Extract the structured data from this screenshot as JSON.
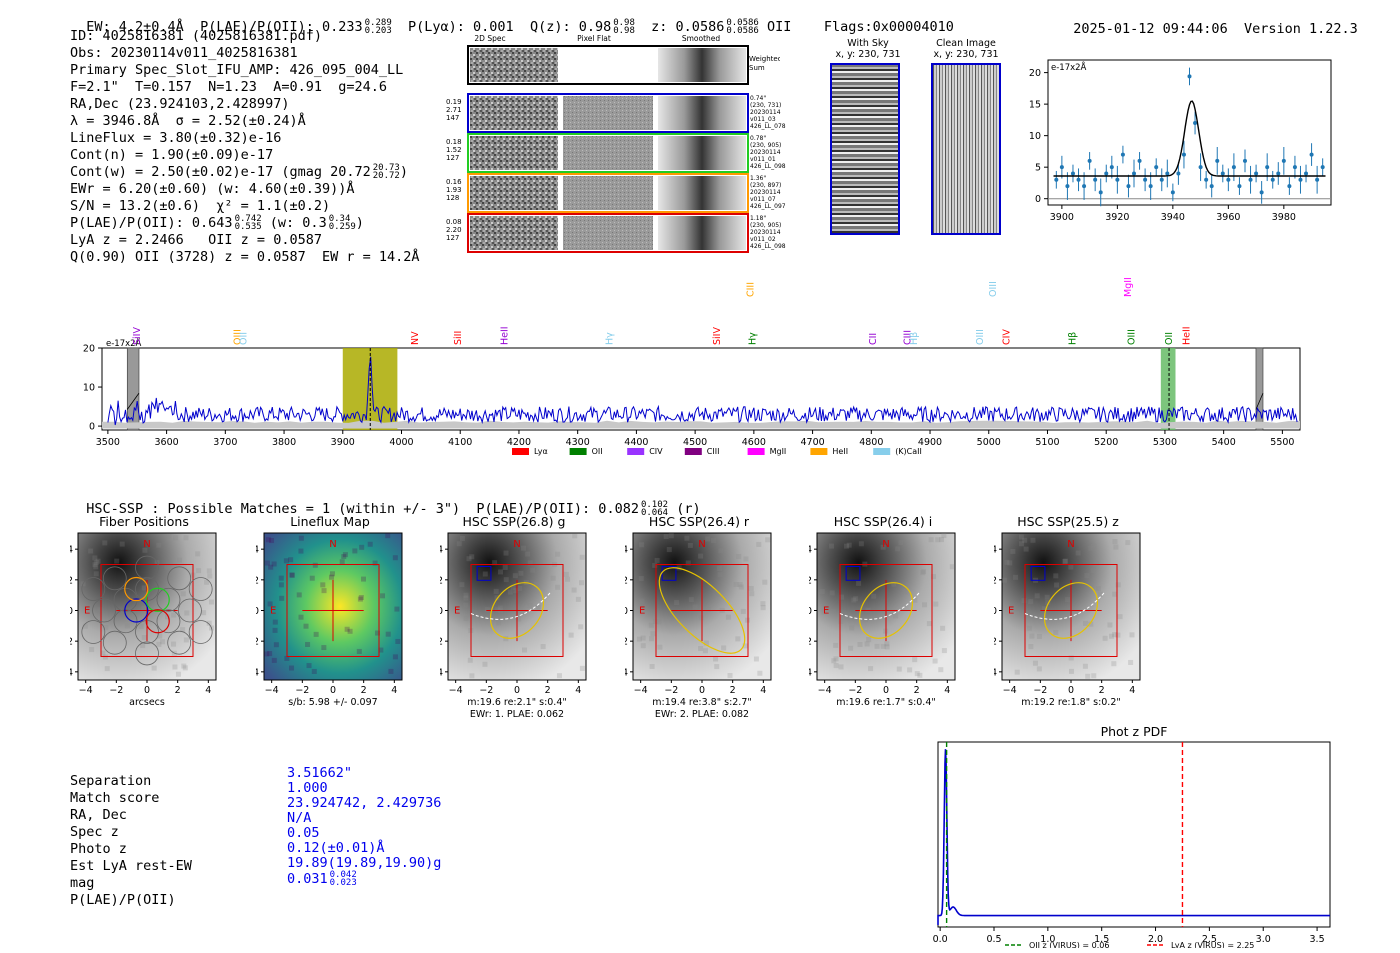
{
  "header": {
    "ew": "EW: 4.2±0.4Å",
    "plae": "P(LAE)/P(OII): 0.233",
    "plae_hi": "0.289",
    "plae_lo": "0.203",
    "plya": "P(Lyα): 0.001",
    "qz": "Q(z): 0.98",
    "qz_hi": "0.98",
    "qz_lo": "0.98",
    "z": "z: 0.0586",
    "z_hi": "0.0586",
    "z_lo": "0.0586",
    "z_line": "OII",
    "flags": "Flags:0x00004010",
    "timestamp": "2025-01-12 09:44:06",
    "version": "Version 1.22.3"
  },
  "info": {
    "id": "ID: 4025816381 (4025816381.pdf)",
    "obs": "Obs: 20230114v011_4025816381",
    "primary": "Primary Spec_Slot_IFU_AMP: 426_095_004_LL",
    "params": "F=2.1\"  T=0.157  N=1.23  A=0.91  g=24.6",
    "radec": "RA,Dec (23.924103,2.428997)",
    "lambda": "λ = 3946.8Å  σ = 2.52(±0.24)Å",
    "lineflux": "LineFlux = 3.80(±0.32)e-16",
    "contn": "Cont(n) = 1.90(±0.09)e-17",
    "contw": "Cont(w) = 2.50(±0.02)e-17 (gmag 20.72",
    "contw_hi": "20.73",
    "contw_lo": "20.72",
    "ewr": "EWr = 6.20(±0.60) (w: 4.60(±0.39))Å",
    "sn": "S/N = 13.2(±0.6)  χ² = 1.1(±0.2)",
    "plae": "P(LAE)/P(OII): 0.643",
    "plae_hi": "0.742",
    "plae_lo": "0.535",
    "plae_w": "(w: 0.3",
    "plae_w_hi": "0.34",
    "plae_w_lo": "0.259",
    "lya": "LyA z = 2.2466   OII z = 0.0587",
    "q": "Q(0.90) OII (3728) z = 0.0587  EW r = 14.2Å"
  },
  "cutouts": {
    "headers": [
      "2D Spec",
      "Pixel Flat",
      "Smoothed"
    ],
    "weighted": "Weighted Sum",
    "rows": [
      {
        "vals": [
          "0.19",
          "2.71",
          "147"
        ],
        "side": [
          "0.74\"",
          "(230, 731)",
          "20230114",
          "v011_03",
          "426_LL_078"
        ],
        "color": "#0000cc"
      },
      {
        "vals": [
          "0.18",
          "1.52",
          "127"
        ],
        "side": [
          "0.78\"",
          "(230, 905)",
          "20230114",
          "v011_01",
          "426_LL_098"
        ],
        "color": "#22cc22"
      },
      {
        "vals": [
          "0.16",
          "1.93",
          "128"
        ],
        "side": [
          "1.36\"",
          "(230, 897)",
          "20230114",
          "v011_07",
          "426_LL_097"
        ],
        "color": "#ff9900"
      },
      {
        "vals": [
          "0.08",
          "2.20",
          "127"
        ],
        "side": [
          "1.18\"",
          "(230, 905)",
          "20230114",
          "v011_02",
          "426_LL_098"
        ],
        "color": "#dd0000"
      }
    ],
    "with_sky": "With Sky",
    "clean": "Clean Image",
    "xy": "x, y: 230, 731"
  },
  "chart_data": [
    {
      "type": "line",
      "title": "Emission line zoom",
      "ylabel": "e-17x2Å",
      "x": [
        3898,
        3900,
        3902,
        3904,
        3906,
        3908,
        3910,
        3912,
        3914,
        3916,
        3918,
        3920,
        3922,
        3924,
        3926,
        3928,
        3930,
        3932,
        3934,
        3936,
        3938,
        3940,
        3942,
        3944,
        3946,
        3948,
        3950,
        3952,
        3954,
        3956,
        3958,
        3960,
        3962,
        3964,
        3966,
        3968,
        3970,
        3972,
        3974,
        3976,
        3978,
        3980,
        3982,
        3984,
        3986,
        3988,
        3990,
        3992,
        3994
      ],
      "values": [
        3,
        5,
        2,
        4,
        3,
        2,
        6,
        3,
        1,
        4,
        5,
        3,
        7,
        2,
        4,
        6,
        3,
        2,
        5,
        3,
        4,
        1,
        4,
        7,
        19.4,
        12,
        5,
        3,
        2,
        6,
        4,
        3,
        5,
        2,
        6,
        3,
        4,
        1,
        5,
        3,
        4,
        6,
        2,
        5,
        3,
        4,
        7,
        3,
        5
      ],
      "fit_peak": 15.5,
      "fit_center": 3946.8,
      "fit_continuum": 3.6,
      "xticks": [
        "3900",
        "3920",
        "3940",
        "3960",
        "3980"
      ],
      "yticks": [
        "0",
        "5",
        "10",
        "15",
        "20"
      ],
      "xlim": [
        3895,
        3997
      ],
      "ylim": [
        -1,
        22
      ]
    },
    {
      "type": "line",
      "title": "Full spectrum",
      "ylabel": "e-17x2Å",
      "xticks": [
        "3500",
        "3600",
        "3700",
        "3800",
        "3900",
        "4000",
        "4100",
        "4200",
        "4300",
        "4400",
        "4500",
        "4600",
        "4700",
        "4800",
        "4900",
        "5000",
        "5100",
        "5200",
        "5300",
        "5400",
        "5500"
      ],
      "yticks": [
        "0",
        "10",
        "20"
      ],
      "xlim": [
        3490,
        5530
      ],
      "ylim": [
        -1,
        20
      ],
      "baseline": 3,
      "peak_x": 3946.8,
      "peak_y": 20,
      "highlights": [
        {
          "x0": 3900,
          "x1": 3993,
          "color": "#aaaa00",
          "label": "Lyα band"
        },
        {
          "x0": 5293,
          "x1": 5318,
          "color": "#66bb66",
          "label": "OII band"
        }
      ],
      "masked": [
        {
          "x0": 3533,
          "x1": 3553
        },
        {
          "x0": 5455,
          "x1": 5467
        }
      ],
      "line_markers": [
        {
          "label": "SiIV",
          "x": 3550,
          "color": "#9400d3",
          "row": 2
        },
        {
          "label": "OIII",
          "x": 3721,
          "color": "#ffa500",
          "row": 2
        },
        {
          "label": "OII",
          "x": 3731,
          "color": "#87ceeb",
          "row": 2
        },
        {
          "label": "NV",
          "x": 4023,
          "color": "#ff0000",
          "row": 2
        },
        {
          "label": "SiII",
          "x": 4096,
          "color": "#ff0000",
          "row": 2
        },
        {
          "label": "HeII",
          "x": 4175,
          "color": "#9400d3",
          "row": 2
        },
        {
          "label": "Hγ",
          "x": 4354,
          "color": "#87ceeb",
          "row": 2
        },
        {
          "label": "SiIV",
          "x": 4537,
          "color": "#ff0000",
          "row": 2
        },
        {
          "label": "Hγ",
          "x": 4598,
          "color": "#008000",
          "row": 2
        },
        {
          "label": "CIII",
          "x": 4594,
          "color": "#ffa500",
          "row": 0
        },
        {
          "label": "CII",
          "x": 4803,
          "color": "#9400d3",
          "row": 2
        },
        {
          "label": "CIII",
          "x": 4862,
          "color": "#9400d3",
          "row": 2
        },
        {
          "label": "Hβ",
          "x": 4873,
          "color": "#87ceeb",
          "row": 2
        },
        {
          "label": "OIII",
          "x": 4985,
          "color": "#87ceeb",
          "row": 2
        },
        {
          "label": "OIII",
          "x": 5007,
          "color": "#87ceeb",
          "row": 0
        },
        {
          "label": "CIV",
          "x": 5030,
          "color": "#ff0000",
          "row": 2
        },
        {
          "label": "Hβ",
          "x": 5143,
          "color": "#008000",
          "row": 2
        },
        {
          "label": "MgII",
          "x": 5237,
          "color": "#ff00ff",
          "row": 0
        },
        {
          "label": "OIII",
          "x": 5243,
          "color": "#008000",
          "row": 2
        },
        {
          "label": "OII",
          "x": 5307,
          "color": "#008000",
          "row": 2
        },
        {
          "label": "HeII",
          "x": 5337,
          "color": "#ff0000",
          "row": 2
        }
      ],
      "legend": [
        {
          "label": "Lyα",
          "color": "#ff0000"
        },
        {
          "label": "OII",
          "color": "#008000"
        },
        {
          "label": "CIV",
          "color": "#9933ff"
        },
        {
          "label": "CIII",
          "color": "#800080"
        },
        {
          "label": "MgII",
          "color": "#ff00ff"
        },
        {
          "label": "HeII",
          "color": "#ffa500"
        },
        {
          "label": "(K)CaII",
          "color": "#87ceeb"
        }
      ]
    },
    {
      "type": "line",
      "title": "Phot z PDF",
      "xticks": [
        "0.0",
        "0.5",
        "1.0",
        "1.5",
        "2.0",
        "2.5",
        "3.0",
        "3.5"
      ],
      "xlim": [
        -0.02,
        3.62
      ],
      "peak_x": 0.05,
      "oii_z": 0.06,
      "lya_z": 2.25,
      "legend": [
        {
          "label": "OII z (VIRUS) = 0.06",
          "color": "#008000"
        },
        {
          "label": "LyA z (VIRUS) = 2.25",
          "color": "#ff0000"
        }
      ]
    }
  ],
  "hsc": {
    "title": "HSC-SSP : Possible Matches = 1 (within +/- 3\")  P(LAE)/P(OII): 0.082",
    "title_hi": "0.102",
    "title_lo": "0.064",
    "title_band": "(r)",
    "panels": [
      {
        "title": "Fiber Positions",
        "caption1": "arcsecs",
        "caption2": ""
      },
      {
        "title": "Lineflux Map",
        "caption1": "s/b: 5.98 +/- 0.097",
        "caption2": ""
      },
      {
        "title": "HSC SSP(26.8) g",
        "caption1": "m:19.6  re:2.1\"  s:0.4\"",
        "caption2": "EWr: 1. PLAE: 0.062"
      },
      {
        "title": "HSC SSP(26.4) r",
        "caption1": "m:19.4  re:3.8\"  s:2.7\"",
        "caption2": "EWr: 2. PLAE: 0.082"
      },
      {
        "title": "HSC SSP(26.4) i",
        "caption1": "m:19.6  re:1.7\"  s:0.4\"",
        "caption2": ""
      },
      {
        "title": "HSC SSP(25.5) z",
        "caption1": "m:19.2  re:1.8\"  s:0.2\"",
        "caption2": ""
      }
    ],
    "ticks": [
      "-4",
      "-2",
      "0",
      "2",
      "4"
    ],
    "n_label": "N",
    "e_label": "E"
  },
  "match": {
    "labels": [
      "Separation",
      "Match score",
      "RA, Dec",
      "Spec z",
      "Photo z",
      "Est LyA rest-EW",
      "mag",
      "P(LAE)/P(OII)"
    ],
    "values": [
      "3.51662\"",
      "1.000",
      "23.924742, 2.429736",
      "N/A",
      "0.05",
      "0.12(±0.01)Å",
      "19.89(19.89,19.90)g",
      "0.031"
    ],
    "plae_hi": "0.042",
    "plae_lo": "0.023"
  },
  "colors": {
    "spectrum": "#0000cc",
    "fit": "#000000",
    "errbar": "#1f77b4"
  }
}
